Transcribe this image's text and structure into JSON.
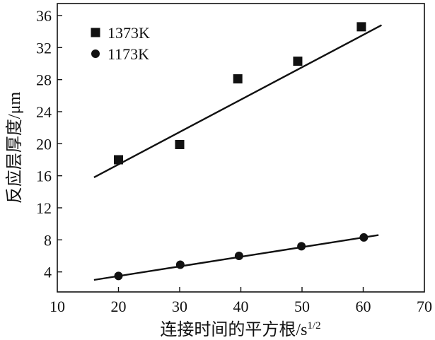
{
  "chart_data": {
    "type": "scatter",
    "xlabel_main": "连接时间的平方根/s",
    "xlabel_sup": "1/2",
    "ylabel": "反应层厚度/μm",
    "xlim": [
      10,
      70
    ],
    "ylim": [
      1.5,
      37.5
    ],
    "xticks": [
      10,
      20,
      30,
      40,
      50,
      60,
      70
    ],
    "yticks": [
      4,
      8,
      12,
      16,
      20,
      24,
      28,
      32,
      36
    ],
    "grid": false,
    "legend_position": "top-left",
    "series": [
      {
        "name": "1373K",
        "marker": "square",
        "color": "#111111",
        "x": [
          20,
          30,
          39.5,
          49.3,
          59.7
        ],
        "y": [
          18.0,
          19.9,
          28.1,
          30.3,
          34.6
        ],
        "fit_line": {
          "x": [
            16,
            63
          ],
          "y": [
            15.8,
            34.8
          ]
        }
      },
      {
        "name": "1173K",
        "marker": "circle",
        "color": "#111111",
        "x": [
          20,
          30.1,
          39.7,
          49.9,
          60.1
        ],
        "y": [
          3.5,
          4.9,
          6.0,
          7.2,
          8.3
        ],
        "fit_line": {
          "x": [
            16,
            62.5
          ],
          "y": [
            3.0,
            8.6
          ]
        }
      }
    ]
  }
}
